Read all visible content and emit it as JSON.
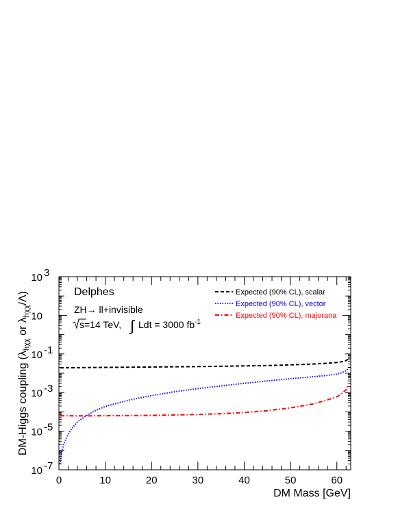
{
  "chart_data": {
    "type": "line",
    "xlabel": "DM Mass [GeV]",
    "ylabel": {
      "main": "DM-Higgs coupling (λ",
      "sub1": "hχχ",
      "mid": " or λ",
      "sub2": "hχχ",
      "end": "/Λ)"
    },
    "xlim": [
      0,
      63
    ],
    "ylim": [
      1e-07,
      1000
    ],
    "yscale": "log",
    "x_ticks": [
      {
        "value": 0,
        "label": "0"
      },
      {
        "value": 10,
        "label": "10"
      },
      {
        "value": 20,
        "label": "20"
      },
      {
        "value": 30,
        "label": "30"
      },
      {
        "value": 40,
        "label": "40"
      },
      {
        "value": 50,
        "label": "50"
      },
      {
        "value": 60,
        "label": "60"
      }
    ],
    "y_ticks": [
      {
        "value": 1e-07,
        "base": "10",
        "exp": "-7"
      },
      {
        "value": 1e-05,
        "base": "10",
        "exp": "-5"
      },
      {
        "value": 0.001,
        "base": "10",
        "exp": "-3"
      },
      {
        "value": 0.1,
        "base": "10",
        "exp": "-1"
      },
      {
        "value": 10,
        "base": "10",
        "exp": ""
      },
      {
        "value": 1000,
        "base": "10",
        "exp": "3"
      }
    ],
    "annotations": {
      "experiment": "Delphes",
      "process": "ZH→ ll+invisible",
      "energy": "s=14 TeV,",
      "lumi_prefix": "Ldt = 3000 fb",
      "lumi_exp": "-1"
    },
    "legend_position": "top-right",
    "series": [
      {
        "name": "Expected (90% CL), scalar",
        "color": "#000000",
        "dash": "dashed",
        "x": [
          0.3,
          5,
          10,
          15,
          20,
          25,
          30,
          35,
          40,
          45,
          50,
          55,
          58,
          60,
          61,
          62,
          62.5
        ],
        "y": [
          0.019,
          0.0195,
          0.02,
          0.0205,
          0.021,
          0.0215,
          0.022,
          0.023,
          0.024,
          0.025,
          0.027,
          0.03,
          0.033,
          0.036,
          0.039,
          0.045,
          0.055
        ]
      },
      {
        "name": "Expected (90% CL), vector",
        "color": "#0000ff",
        "dash": "dotted",
        "x": [
          0.2,
          0.5,
          1,
          2,
          3,
          4,
          5,
          6,
          7,
          8,
          10,
          15,
          20,
          25,
          30,
          35,
          40,
          45,
          50,
          55,
          58,
          60,
          61,
          62,
          62.5
        ],
        "y": [
          2e-07,
          6e-07,
          2e-06,
          7e-06,
          1.6e-05,
          3e-05,
          4.5e-05,
          6.5e-05,
          9e-05,
          0.00012,
          0.00019,
          0.0004,
          0.0007,
          0.0011,
          0.0016,
          0.0022,
          0.003,
          0.004,
          0.0052,
          0.0066,
          0.0078,
          0.009,
          0.0105,
          0.0135,
          0.018
        ]
      },
      {
        "name": "Expected (90% CL), majorana",
        "color": "#ff0000",
        "dash": "dashdot",
        "x": [
          0.3,
          5,
          10,
          15,
          20,
          25,
          30,
          35,
          40,
          45,
          50,
          55,
          58,
          60,
          61,
          62,
          62.5
        ],
        "y": [
          6.3e-05,
          6.2e-05,
          6.3e-05,
          6.4e-05,
          6.6e-05,
          6.9e-05,
          7.3e-05,
          8e-05,
          9.2e-05,
          0.000115,
          0.00016,
          0.00026,
          0.00042,
          0.0006,
          0.00085,
          0.0014,
          0.0025
        ]
      }
    ]
  }
}
